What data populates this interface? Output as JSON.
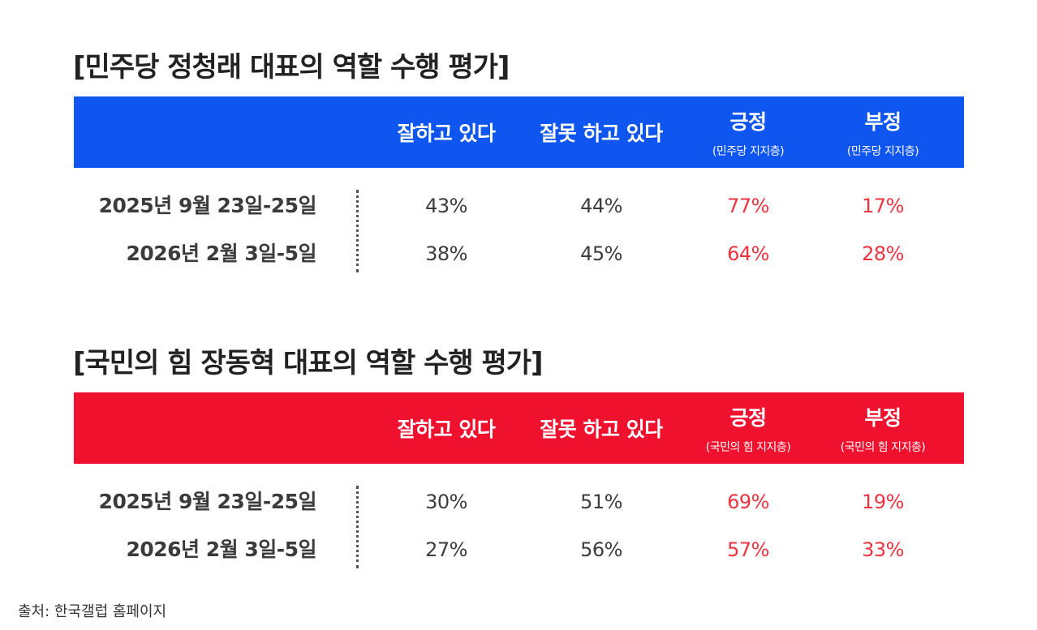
{
  "colors": {
    "democratic": "#0f56f0",
    "ppp": "#f0112f",
    "positive": "#ef3340",
    "text": "#333333"
  },
  "chart_data": [
    {
      "type": "table",
      "title": "[민주당 정청래 대표의 역할 수행 평가]",
      "columns": [
        {
          "label": "잘하고 있다",
          "sub": ""
        },
        {
          "label": "잘못 하고 있다",
          "sub": ""
        },
        {
          "label": "긍정",
          "sub": "(민주당 지지층)"
        },
        {
          "label": "부정",
          "sub": "(민주당 지지층)"
        }
      ],
      "rows": [
        {
          "label": "2025년 9월 23일-25일",
          "values": [
            "43%",
            "44%",
            "77%",
            "17%"
          ]
        },
        {
          "label": "2026년 2월 3일-5일",
          "values": [
            "38%",
            "45%",
            "64%",
            "28%"
          ]
        }
      ]
    },
    {
      "type": "table",
      "title": "[국민의 힘 장동혁 대표의 역할 수행 평가]",
      "columns": [
        {
          "label": "잘하고 있다",
          "sub": ""
        },
        {
          "label": "잘못 하고 있다",
          "sub": ""
        },
        {
          "label": "긍정",
          "sub": "(국민의 힘 지지층)"
        },
        {
          "label": "부정",
          "sub": "(국민의 힘 지지층)"
        }
      ],
      "rows": [
        {
          "label": "2025년 9월 23일-25일",
          "values": [
            "30%",
            "51%",
            "69%",
            "19%"
          ]
        },
        {
          "label": "2026년 2월 3일-5일",
          "values": [
            "27%",
            "56%",
            "57%",
            "33%"
          ]
        }
      ]
    }
  ],
  "source": "출처: 한국갤럽 홈페이지"
}
